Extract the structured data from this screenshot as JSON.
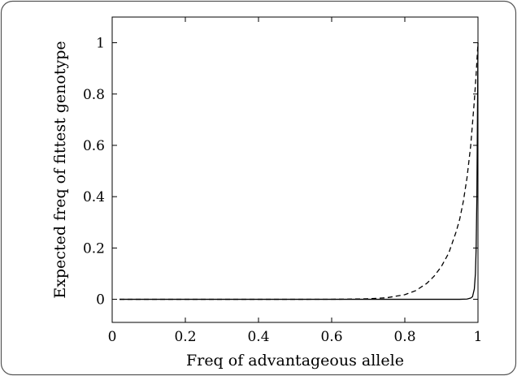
{
  "chart_data": {
    "type": "line",
    "title": "",
    "xlabel": "Freq of advantageous allele",
    "ylabel": "Expected freq of fittest genotype",
    "xlim": [
      0,
      1
    ],
    "ylim": [
      -0.09,
      1.1
    ],
    "xticks": [
      0,
      0.2,
      0.4,
      0.6,
      0.8,
      1
    ],
    "yticks": [
      0,
      0.2,
      0.4,
      0.6,
      0.8,
      1
    ],
    "xtick_labels": [
      "0",
      "0.2",
      "0.4",
      "0.6",
      "0.8",
      "1"
    ],
    "ytick_labels": [
      "0",
      "0.2",
      "0.4",
      "0.6",
      "0.8",
      "1"
    ],
    "grid": false,
    "legend": "none",
    "series": [
      {
        "style": "solid",
        "color": "#000000",
        "x": [
          0.02,
          0.1,
          0.2,
          0.3,
          0.4,
          0.5,
          0.6,
          0.7,
          0.8,
          0.9,
          0.95,
          0.97,
          0.98,
          0.985,
          0.99,
          0.993,
          0.995,
          0.997,
          0.998,
          0.999,
          1.0
        ],
        "y": [
          0,
          0,
          0,
          0,
          0,
          0,
          0,
          0,
          0,
          0,
          0,
          0.001,
          0.005,
          0.01,
          0.04,
          0.1,
          0.2,
          0.4,
          0.6,
          0.8,
          1.0
        ]
      },
      {
        "style": "dashed",
        "color": "#000000",
        "x": [
          0.02,
          0.1,
          0.2,
          0.3,
          0.4,
          0.5,
          0.6,
          0.65,
          0.7,
          0.75,
          0.8,
          0.83,
          0.86,
          0.88,
          0.9,
          0.92,
          0.94,
          0.95,
          0.96,
          0.97,
          0.98,
          0.99,
          0.995,
          1.0
        ],
        "y": [
          0,
          0,
          0,
          0,
          0,
          0,
          0.0002,
          0.0008,
          0.002,
          0.006,
          0.018,
          0.034,
          0.062,
          0.09,
          0.128,
          0.18,
          0.262,
          0.312,
          0.382,
          0.474,
          0.597,
          0.773,
          0.878,
          1.0
        ]
      }
    ]
  }
}
